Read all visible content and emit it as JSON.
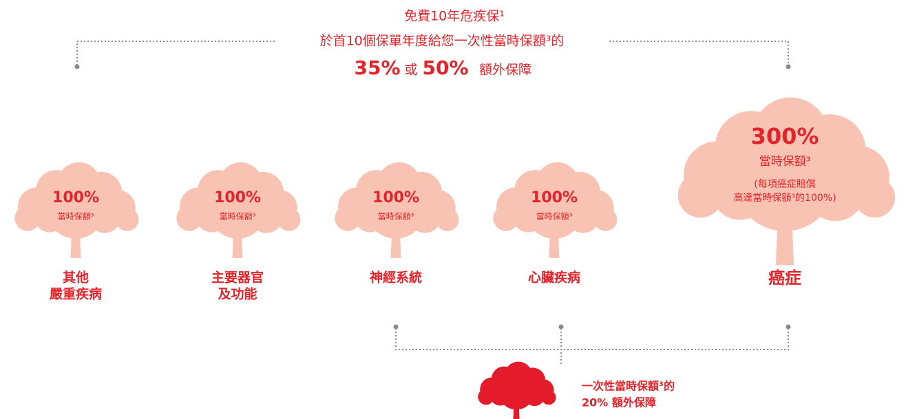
{
  "header": {
    "line1": "免費10年危疾保¹",
    "line2": "於首10個保單年度給您一次性當時保額³的",
    "pct_a": "35%",
    "or": "或",
    "pct_b": "50%",
    "extra": "額外保障"
  },
  "trees": [
    {
      "percent": "100%",
      "caption": "當時保額³",
      "label": [
        "其他",
        "嚴重疾病"
      ]
    },
    {
      "percent": "100%",
      "caption": "當時保額³",
      "label": [
        "主要器官",
        "及功能"
      ]
    },
    {
      "percent": "100%",
      "caption": "當時保額³",
      "label": [
        "神經系統"
      ]
    },
    {
      "percent": "100%",
      "caption": "當時保額³",
      "label": [
        "心臟疾病"
      ]
    },
    {
      "percent": "300%",
      "caption": "當時保額³",
      "note": [
        "(每項癌症賠償",
        "高達當時保額³的100%)"
      ],
      "label": [
        "癌症"
      ]
    }
  ],
  "bonus": {
    "lines": [
      "一次性當時保額³的",
      "20% 額外保障"
    ]
  }
}
